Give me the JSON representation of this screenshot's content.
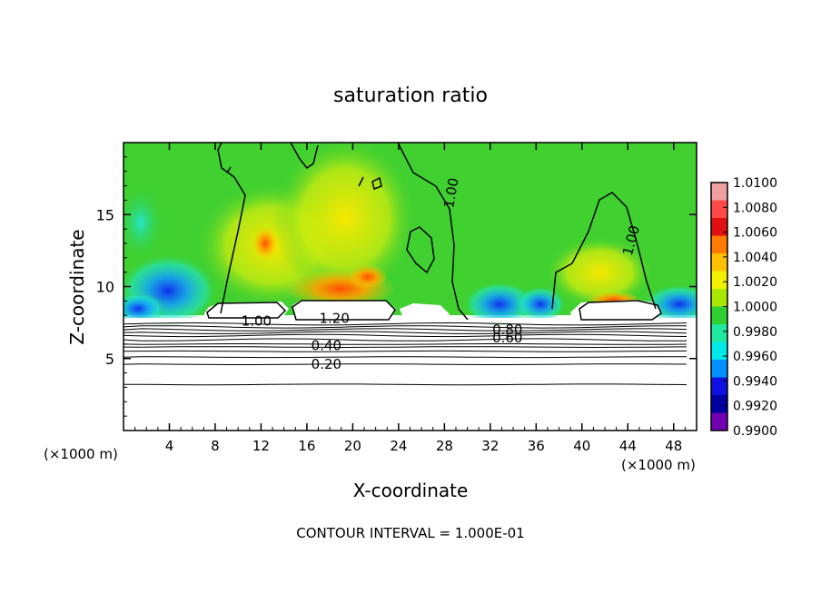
{
  "figure": {
    "title": "saturation ratio",
    "footer": "CONTOUR INTERVAL = 1.000E-01",
    "x_unit_label_left": "(×1000 m)",
    "x_unit_label_right": "(×1000 m)"
  },
  "chart_data": {
    "type": "heatmap",
    "title": "saturation ratio",
    "xlabel": "X-coordinate",
    "ylabel": "Z-coordinate",
    "x_unit": "(×1000 m)",
    "xlim": [
      0,
      50
    ],
    "ylim": [
      0,
      20
    ],
    "x_ticks": [
      4,
      8,
      12,
      16,
      20,
      24,
      28,
      32,
      36,
      40,
      44,
      48
    ],
    "y_ticks": [
      5,
      10,
      15
    ],
    "colorbar": {
      "levels": [
        "1.0100",
        "1.0080",
        "1.0060",
        "1.0040",
        "1.0020",
        "1.0000",
        "0.9980",
        "0.9960",
        "0.9940",
        "0.9920",
        "0.9900"
      ],
      "colors": [
        "#f0a0a0",
        "#ff4848",
        "#e01010",
        "#ff7a00",
        "#ffc000",
        "#f2f200",
        "#a8e800",
        "#30d030",
        "#20e8a0",
        "#00e8e8",
        "#0090ff",
        "#1010e0",
        "#0000a0",
        "#7000b0"
      ]
    },
    "contour_labels": [
      {
        "text": "1.00",
        "x": 11.6,
        "z": 7.6,
        "angle": 0
      },
      {
        "text": "1.20",
        "x": 18.4,
        "z": 7.8,
        "angle": 0
      },
      {
        "text": "1.00",
        "x": 28.6,
        "z": 16.5,
        "angle": -80
      },
      {
        "text": "1.00",
        "x": 44.3,
        "z": 13.2,
        "angle": -75
      },
      {
        "text": "0.80",
        "x": 33.5,
        "z": 7.0,
        "angle": 0
      },
      {
        "text": "0.60",
        "x": 33.5,
        "z": 6.45,
        "angle": 0
      },
      {
        "text": "0.40",
        "x": 17.7,
        "z": 5.9,
        "angle": 0
      },
      {
        "text": "0.20",
        "x": 17.7,
        "z": 4.6,
        "angle": 0
      }
    ],
    "level_lines_z": [
      7.4,
      7.2,
      7.0,
      6.8,
      6.6,
      6.3,
      6.0,
      5.8,
      5.5,
      5.1,
      4.6,
      3.2
    ],
    "grid": false,
    "legend": "colorbar-right"
  }
}
